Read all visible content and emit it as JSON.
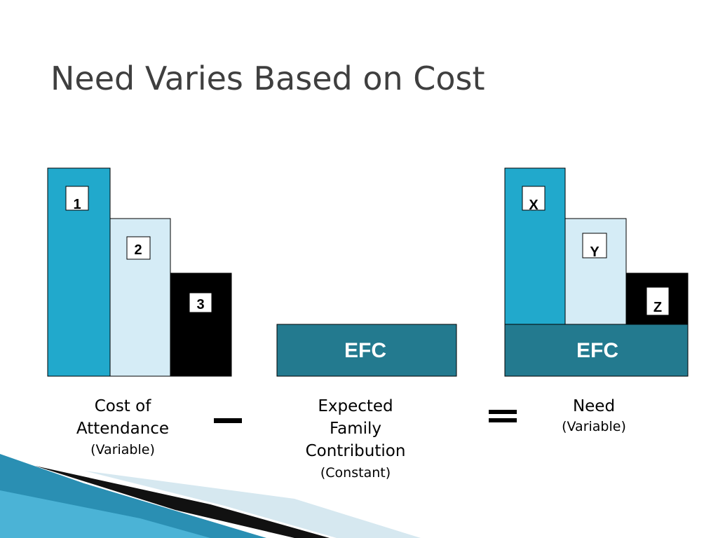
{
  "title": "Need Varies Based on Cost",
  "cost_of_attendance": {
    "bars": [
      "1",
      "2",
      "3"
    ],
    "caption": [
      "Cost of",
      "Attendance"
    ],
    "note": "(Variable)"
  },
  "efc": {
    "box": "EFC",
    "caption": [
      "Expected",
      "Family",
      "Contribution"
    ],
    "note": "(Constant)"
  },
  "need": {
    "bars": [
      "X",
      "Y",
      "Z"
    ],
    "box": "EFC",
    "caption": [
      "Need"
    ],
    "note": "(Variable)"
  }
}
